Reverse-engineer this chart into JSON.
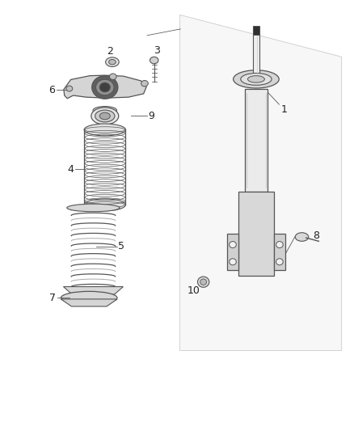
{
  "bg_color": "#ffffff",
  "line_color": "#555555",
  "dark_color": "#333333",
  "fig_w": 4.38,
  "fig_h": 5.33,
  "dpi": 100
}
